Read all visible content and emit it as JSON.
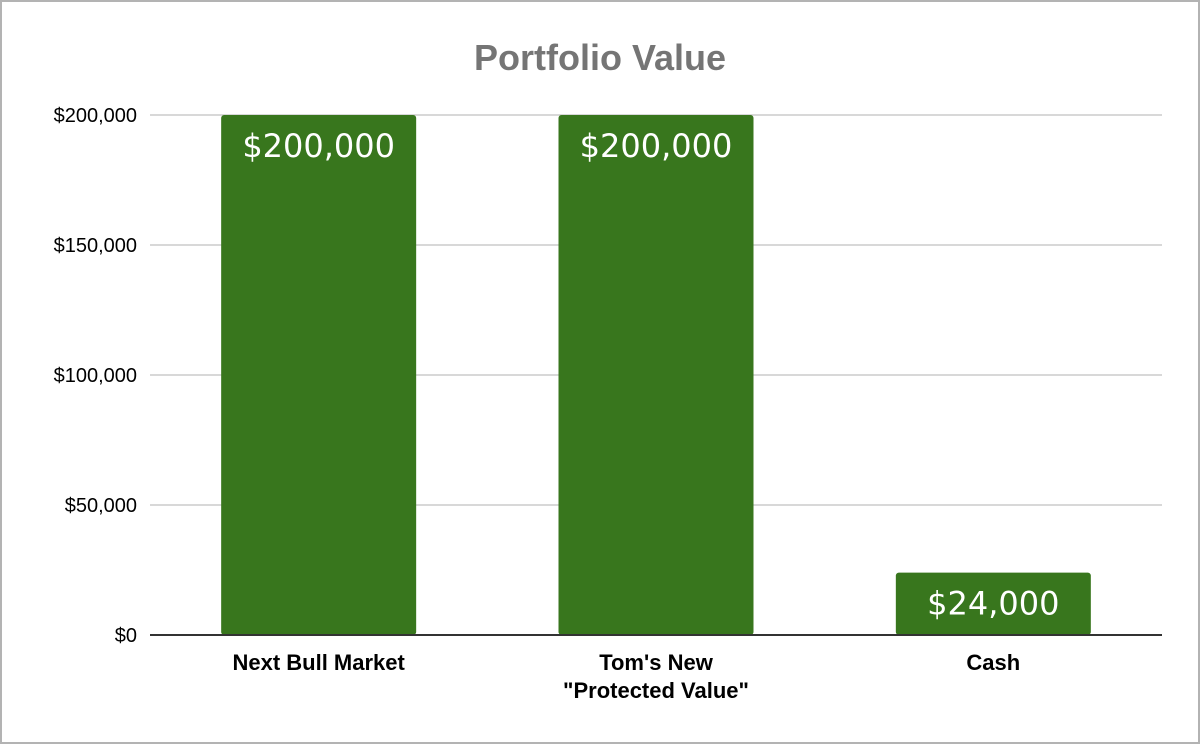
{
  "chart_data": {
    "type": "bar",
    "title": "Portfolio Value",
    "categories": [
      [
        "Next Bull Market"
      ],
      [
        "Tom's New",
        "\"Protected Value\""
      ],
      [
        "Cash"
      ]
    ],
    "values": [
      200000,
      200000,
      24000
    ],
    "data_labels": [
      "$200,000",
      "$200,000",
      "$24,000"
    ],
    "yticks": [
      0,
      50000,
      100000,
      150000,
      200000
    ],
    "ytick_labels": [
      "$0",
      "$50,000",
      "$100,000",
      "$150,000",
      "$200,000"
    ],
    "ylim": [
      0,
      200000
    ],
    "grid": true,
    "legend": "none",
    "bar_color": "#38761d",
    "xlabel": "",
    "ylabel": ""
  }
}
